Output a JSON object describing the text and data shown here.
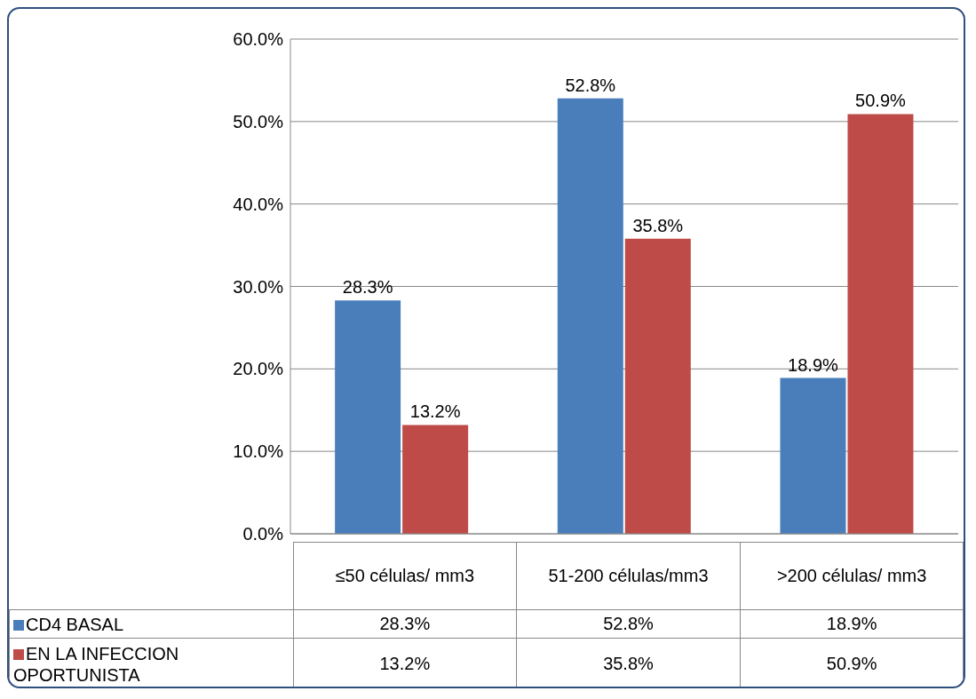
{
  "chart_data": {
    "type": "bar",
    "categories": [
      "≤50 células/ mm3",
      "51-200 células/mm3",
      ">200 células/ mm3"
    ],
    "series": [
      {
        "name": "CD4 BASAL",
        "color": "#4a7ebb",
        "values": [
          28.3,
          52.8,
          18.9
        ],
        "value_labels": [
          "28.3%",
          "52.8%",
          "18.9%"
        ]
      },
      {
        "name": "EN LA INFECCION OPORTUNISTA",
        "color": "#be4b48",
        "values": [
          13.2,
          35.8,
          50.9
        ],
        "value_labels": [
          "13.2%",
          "35.8%",
          "50.9%"
        ]
      }
    ],
    "ylim": [
      0,
      60
    ],
    "yticks": [
      {
        "value": 0,
        "label": "0.0%"
      },
      {
        "value": 10,
        "label": "10.0%"
      },
      {
        "value": 20,
        "label": "20.0%"
      },
      {
        "value": 30,
        "label": "30.0%"
      },
      {
        "value": 40,
        "label": "40.0%"
      },
      {
        "value": 50,
        "label": "50.0%"
      },
      {
        "value": 60,
        "label": "60.0%"
      }
    ],
    "grid": "y",
    "legend": "bottom"
  }
}
